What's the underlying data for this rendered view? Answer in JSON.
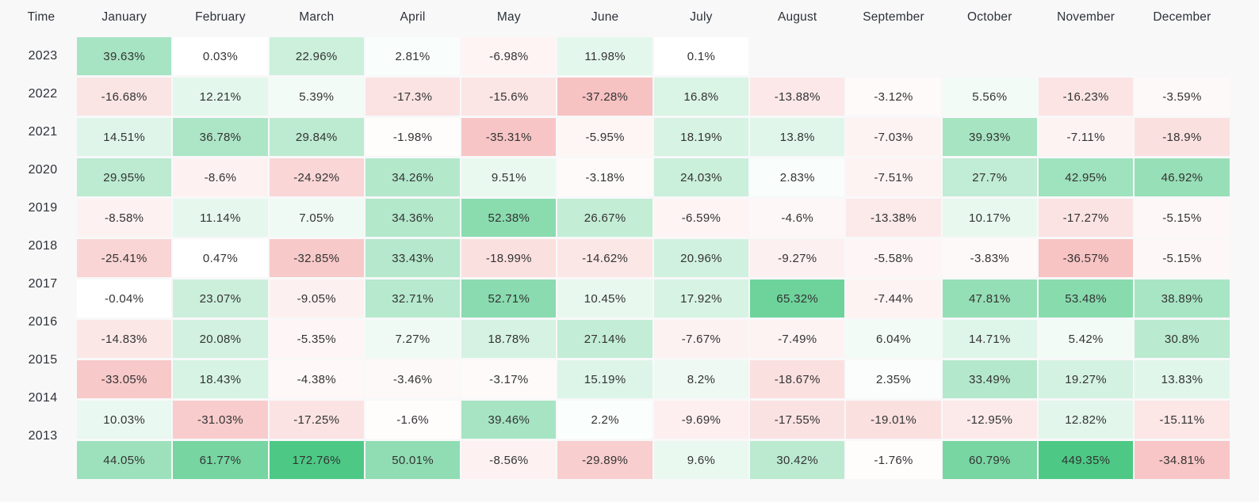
{
  "chart_data": {
    "type": "heatmap",
    "corner_label": "Time",
    "x_categories": [
      "January",
      "February",
      "March",
      "April",
      "May",
      "June",
      "July",
      "August",
      "September",
      "October",
      "November",
      "December"
    ],
    "y_categories": [
      "2023",
      "2022",
      "2021",
      "2020",
      "2019",
      "2018",
      "2017",
      "2016",
      "2015",
      "2014",
      "2013"
    ],
    "values": [
      [
        39.63,
        0.03,
        22.96,
        2.81,
        -6.98,
        11.98,
        0.1,
        null,
        null,
        null,
        null,
        null
      ],
      [
        -16.68,
        12.21,
        5.39,
        -17.3,
        -15.6,
        -37.28,
        16.8,
        -13.88,
        -3.12,
        5.56,
        -16.23,
        -3.59
      ],
      [
        14.51,
        36.78,
        29.84,
        -1.98,
        -35.31,
        -5.95,
        18.19,
        13.8,
        -7.03,
        39.93,
        -7.11,
        -18.9
      ],
      [
        29.95,
        -8.6,
        -24.92,
        34.26,
        9.51,
        -3.18,
        24.03,
        2.83,
        -7.51,
        27.7,
        42.95,
        46.92
      ],
      [
        -8.58,
        11.14,
        7.05,
        34.36,
        52.38,
        26.67,
        -6.59,
        -4.6,
        -13.38,
        10.17,
        -17.27,
        -5.15
      ],
      [
        -25.41,
        0.47,
        -32.85,
        33.43,
        -18.99,
        -14.62,
        20.96,
        -9.27,
        -5.58,
        -3.83,
        -36.57,
        -5.15
      ],
      [
        -0.04,
        23.07,
        -9.05,
        32.71,
        52.71,
        10.45,
        17.92,
        65.32,
        -7.44,
        47.81,
        53.48,
        38.89
      ],
      [
        -14.83,
        20.08,
        -5.35,
        7.27,
        18.78,
        27.14,
        -7.67,
        -7.49,
        6.04,
        14.71,
        5.42,
        30.8
      ],
      [
        -33.05,
        18.43,
        -4.38,
        -3.46,
        -3.17,
        15.19,
        8.2,
        -18.67,
        2.35,
        33.49,
        19.27,
        13.83
      ],
      [
        10.03,
        -31.03,
        -17.25,
        -1.6,
        39.46,
        2.2,
        -9.69,
        -17.55,
        -19.01,
        -12.95,
        12.82,
        -15.11
      ],
      [
        44.05,
        61.77,
        172.76,
        50.01,
        -8.56,
        -29.89,
        9.6,
        30.42,
        -1.76,
        60.79,
        449.35,
        -34.81
      ]
    ],
    "unit": "%",
    "colormap": {
      "positive_base": "#4dc985",
      "negative_base": "#ee7c7c",
      "abs_cap": 80
    },
    "layout": {
      "background": "#f8f8f9",
      "text_color": "#333333",
      "grid": "off",
      "legend": "none"
    }
  }
}
